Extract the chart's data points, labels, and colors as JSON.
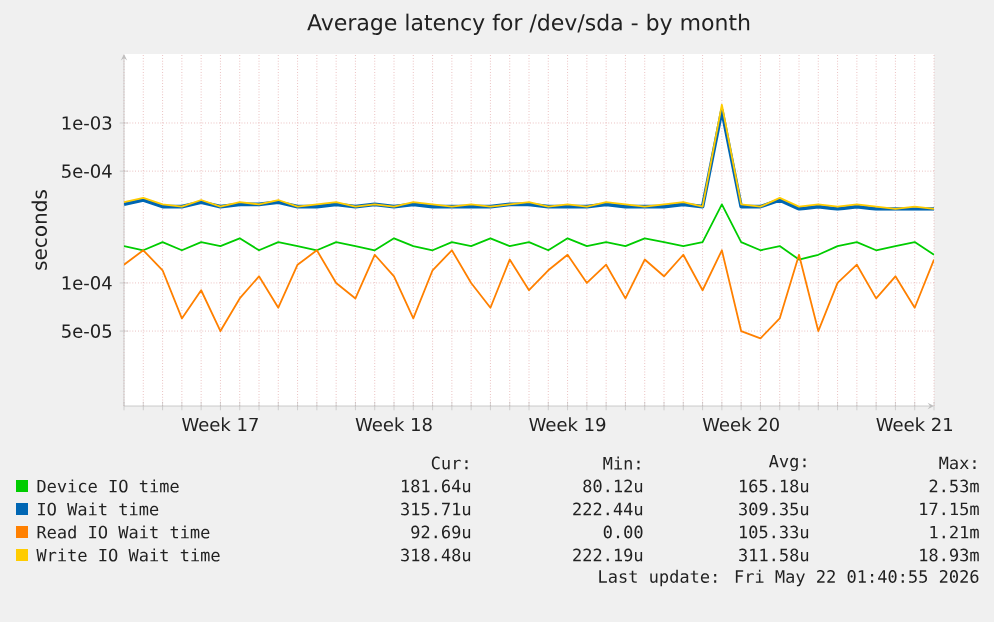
{
  "chart_data": {
    "type": "line",
    "title": "Average latency for /dev/sda - by month",
    "ylabel": "seconds",
    "log": "y",
    "grid": true,
    "legend": "bottom",
    "ylim": [
      1.7e-05,
      0.0027
    ],
    "yticks": [
      {
        "value": 5e-05,
        "label": "5e-05"
      },
      {
        "value": 0.0001,
        "label": "1e-04"
      },
      {
        "value": 0.0005,
        "label": "5e-04"
      },
      {
        "value": 0.001,
        "label": "1e-03"
      }
    ],
    "categories": [
      null,
      null,
      null,
      null,
      null,
      "Week 17",
      null,
      null,
      null,
      null,
      null,
      null,
      null,
      null,
      "Week 18",
      null,
      null,
      null,
      null,
      null,
      null,
      null,
      null,
      "Week 19",
      null,
      null,
      null,
      null,
      null,
      null,
      null,
      null,
      "Week 20",
      null,
      null,
      null,
      null,
      null,
      null,
      null,
      null,
      "Week 21",
      null
    ],
    "series": [
      {
        "name": "Device IO time",
        "color": "#00cc00",
        "values": [
          0.00017,
          0.00016,
          0.00018,
          0.00016,
          0.00018,
          0.00017,
          0.00019,
          0.00016,
          0.00018,
          0.00017,
          0.00016,
          0.00018,
          0.00017,
          0.00016,
          0.00019,
          0.00017,
          0.00016,
          0.00018,
          0.00017,
          0.00019,
          0.00017,
          0.00018,
          0.00016,
          0.00019,
          0.00017,
          0.00018,
          0.00017,
          0.00019,
          0.00018,
          0.00017,
          0.00018,
          0.00031,
          0.00018,
          0.00016,
          0.00017,
          0.00014,
          0.00015,
          0.00017,
          0.00018,
          0.00016,
          0.00017,
          0.00018,
          0.00015
        ]
      },
      {
        "name": "IO Wait time",
        "color": "#0066b3",
        "values": [
          0.00031,
          0.00033,
          0.0003,
          0.0003,
          0.00032,
          0.0003,
          0.00031,
          0.00031,
          0.00032,
          0.0003,
          0.0003,
          0.00031,
          0.0003,
          0.00031,
          0.0003,
          0.00031,
          0.0003,
          0.0003,
          0.0003,
          0.0003,
          0.00031,
          0.00031,
          0.0003,
          0.0003,
          0.0003,
          0.00031,
          0.0003,
          0.0003,
          0.0003,
          0.00031,
          0.0003,
          0.0012,
          0.0003,
          0.0003,
          0.00033,
          0.00029,
          0.0003,
          0.00029,
          0.0003,
          0.00029,
          0.00029,
          0.00029,
          0.00029
        ]
      },
      {
        "name": "Read IO Wait time",
        "color": "#ff8000",
        "values": [
          0.00013,
          0.00016,
          0.00012,
          6e-05,
          9e-05,
          5e-05,
          8e-05,
          0.00011,
          7e-05,
          0.00013,
          0.00016,
          0.0001,
          8e-05,
          0.00015,
          0.00011,
          6e-05,
          0.00012,
          0.00016,
          0.0001,
          7e-05,
          0.00014,
          9e-05,
          0.00012,
          0.00015,
          0.0001,
          0.00013,
          8e-05,
          0.00014,
          0.00011,
          0.00015,
          9e-05,
          0.00016,
          5e-05,
          4.5e-05,
          6e-05,
          0.00015,
          5e-05,
          0.0001,
          0.00013,
          8e-05,
          0.00011,
          7e-05,
          0.00014
        ]
      },
      {
        "name": "Write IO Wait time",
        "color": "#ffcc00",
        "values": [
          0.00032,
          0.00034,
          0.00031,
          0.0003,
          0.00033,
          0.0003,
          0.00032,
          0.00031,
          0.00033,
          0.0003,
          0.00031,
          0.00032,
          0.0003,
          0.00031,
          0.0003,
          0.00032,
          0.00031,
          0.0003,
          0.00031,
          0.0003,
          0.00031,
          0.00032,
          0.0003,
          0.00031,
          0.0003,
          0.00032,
          0.00031,
          0.0003,
          0.00031,
          0.00032,
          0.0003,
          0.0013,
          0.00031,
          0.0003,
          0.00034,
          0.0003,
          0.00031,
          0.0003,
          0.00031,
          0.0003,
          0.00029,
          0.0003,
          0.00029
        ]
      }
    ],
    "annotations": [
      "Cur:",
      "Min:",
      "Avg:",
      "Max:",
      "181.64u",
      "80.12u",
      "165.18u",
      "2.53m",
      "315.71u",
      "222.44u",
      "309.35u",
      "17.15m",
      "92.69u",
      "0.00",
      "105.33u",
      "1.21m",
      "318.48u",
      "222.19u",
      "311.58u",
      "18.93m",
      "Last update: Fri May 22 01:40:55 2026"
    ]
  }
}
